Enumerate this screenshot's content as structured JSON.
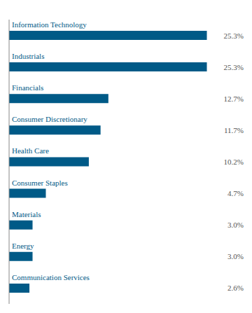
{
  "chart_data": {
    "type": "bar",
    "orientation": "horizontal",
    "categories": [
      "Information Technology",
      "Industrials",
      "Financials",
      "Consumer Discretionary",
      "Health Care",
      "Consumer Staples",
      "Materials",
      "Energy",
      "Communication Services"
    ],
    "values": [
      25.3,
      25.3,
      12.7,
      11.7,
      10.2,
      4.7,
      3.0,
      3.0,
      2.6
    ],
    "value_labels": [
      "25.3%",
      "25.3%",
      "12.7%",
      "11.7%",
      "10.2%",
      "4.7%",
      "3.0%",
      "3.0%",
      "2.6%"
    ],
    "color": "#005a87",
    "xlim": [
      0,
      30
    ],
    "data_labels": true,
    "tick_labels": false,
    "grid": false
  }
}
